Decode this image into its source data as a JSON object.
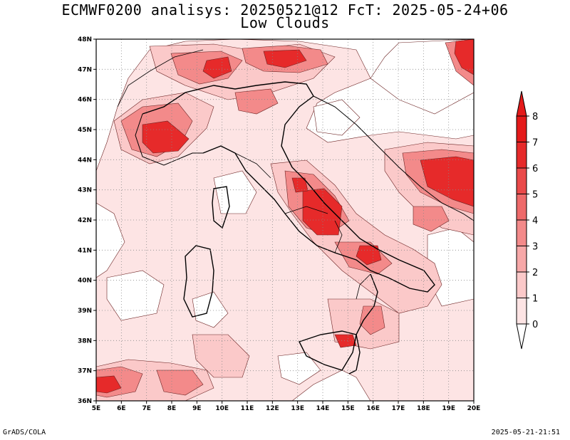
{
  "title": {
    "line1": "ECMWF0200 analisys: 20250521@12 FcT: 2025-05-24+06",
    "line2": "Low Clouds"
  },
  "map": {
    "lat_range": [
      36,
      48
    ],
    "lon_range": [
      5,
      20
    ],
    "lat_ticks": [
      "36N",
      "37N",
      "38N",
      "39N",
      "40N",
      "41N",
      "42N",
      "43N",
      "44N",
      "45N",
      "46N",
      "47N",
      "48N"
    ],
    "lon_ticks": [
      "5E",
      "6E",
      "7E",
      "8E",
      "9E",
      "10E",
      "11E",
      "12E",
      "13E",
      "14E",
      "15E",
      "16E",
      "17E",
      "18E",
      "19E",
      "20E"
    ],
    "grid": "dotted"
  },
  "colorbar": {
    "levels": [
      "0",
      "1",
      "2",
      "3",
      "4",
      "5",
      "6",
      "7",
      "8"
    ],
    "colors": [
      "#ffffff",
      "#fde4e4",
      "#fbc9c9",
      "#f7a8a8",
      "#f38a8a",
      "#ee6a6a",
      "#ea4a4a",
      "#e62a2a",
      "#e41a1a"
    ]
  },
  "footer": {
    "left": "GrADS/COLA",
    "right": "2025-05-21-21:51"
  }
}
